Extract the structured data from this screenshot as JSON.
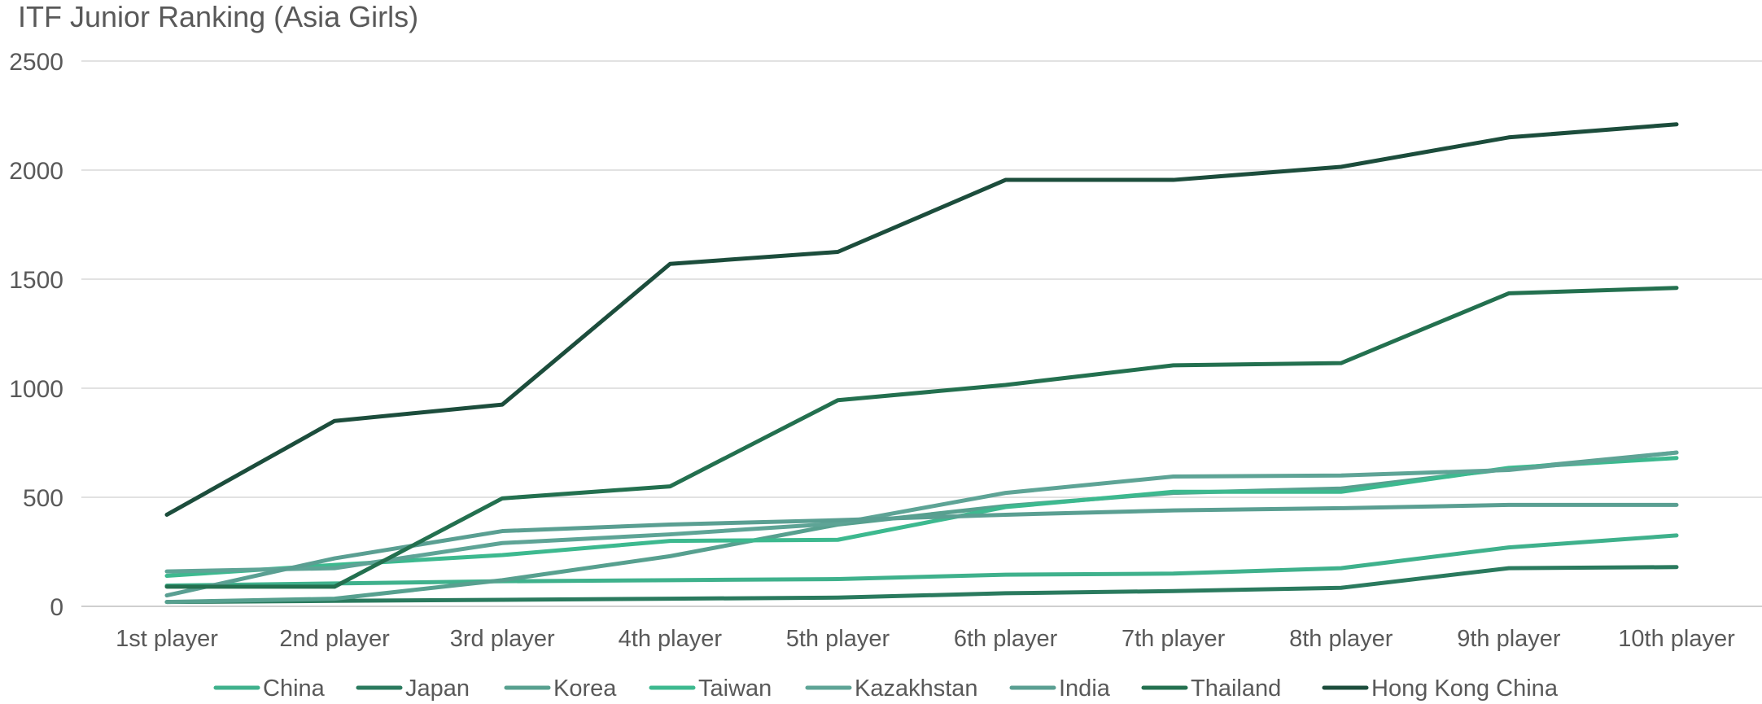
{
  "chart_data": {
    "type": "line",
    "title": "ITF Junior Ranking (Asia Girls)",
    "xlabel": "",
    "ylabel": "",
    "ylim": [
      0,
      2500
    ],
    "yticks": [
      0,
      500,
      1000,
      1500,
      2000,
      2500
    ],
    "grid": true,
    "legend_position": "bottom",
    "categories": [
      "1st player",
      "2nd player",
      "3rd player",
      "4th player",
      "5th player",
      "6th player",
      "7th player",
      "8th player",
      "9th player",
      "10th player"
    ],
    "series": [
      {
        "name": "China",
        "color": "#3fb18c",
        "values": [
          95,
          105,
          115,
          120,
          125,
          145,
          150,
          175,
          270,
          325
        ]
      },
      {
        "name": "Japan",
        "color": "#2a7a5e",
        "values": [
          20,
          25,
          30,
          35,
          40,
          60,
          70,
          85,
          175,
          180
        ]
      },
      {
        "name": "Korea",
        "color": "#57a08f",
        "values": [
          20,
          35,
          120,
          230,
          375,
          460,
          520,
          540,
          630,
          705
        ]
      },
      {
        "name": "Taiwan",
        "color": "#3db98f",
        "values": [
          140,
          190,
          235,
          300,
          305,
          455,
          525,
          525,
          635,
          680
        ]
      },
      {
        "name": "Kazakhstan",
        "color": "#5ea496",
        "values": [
          160,
          175,
          290,
          330,
          380,
          520,
          595,
          600,
          625,
          705
        ]
      },
      {
        "name": "India",
        "color": "#5a9f92",
        "values": [
          50,
          220,
          345,
          375,
          395,
          420,
          440,
          450,
          465,
          465
        ]
      },
      {
        "name": "Thailand",
        "color": "#23704f",
        "values": [
          90,
          90,
          495,
          550,
          945,
          1015,
          1105,
          1115,
          1435,
          1460
        ]
      },
      {
        "name": "Hong Kong China",
        "color": "#1c4d3c",
        "values": [
          420,
          850,
          925,
          1570,
          1625,
          1955,
          1955,
          2015,
          2150,
          2210
        ]
      }
    ]
  }
}
